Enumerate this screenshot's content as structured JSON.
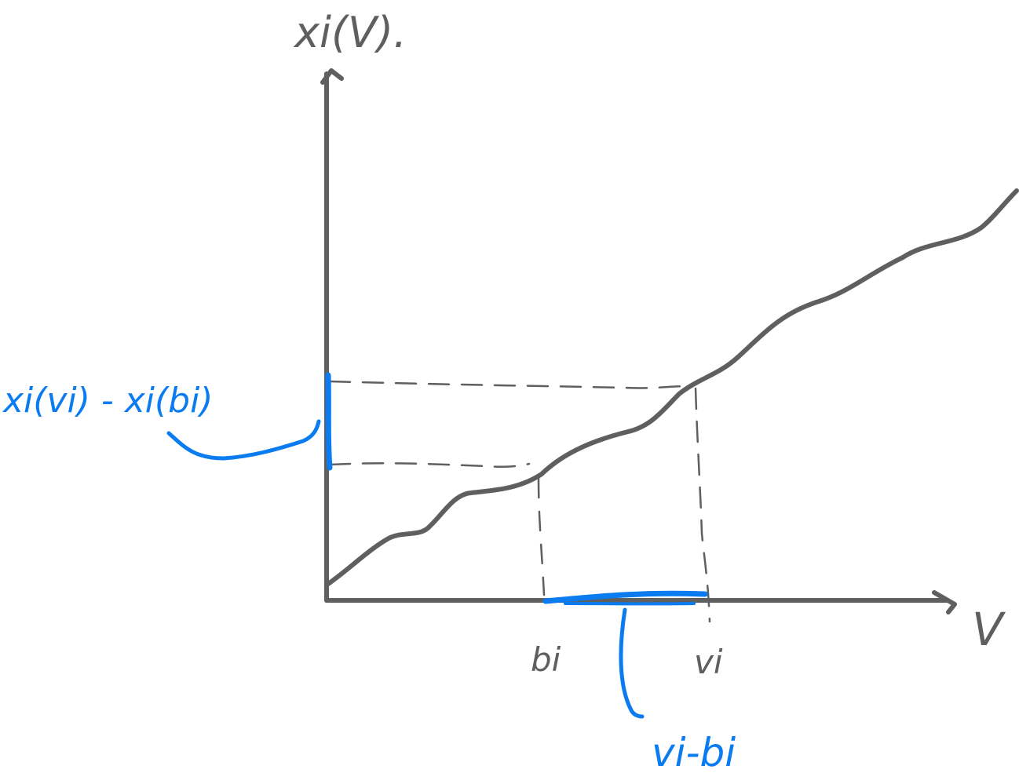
{
  "diagram": {
    "y_axis_label": "xi(V).",
    "x_axis_label": "V",
    "tick_bi": "bi",
    "tick_vi": "vi",
    "y_interval_label": "xi(vi) - xi(bi)",
    "x_interval_label": "vi-bi",
    "colors": {
      "ink": "#5f5f5f",
      "highlight": "#0a7cf0"
    }
  }
}
